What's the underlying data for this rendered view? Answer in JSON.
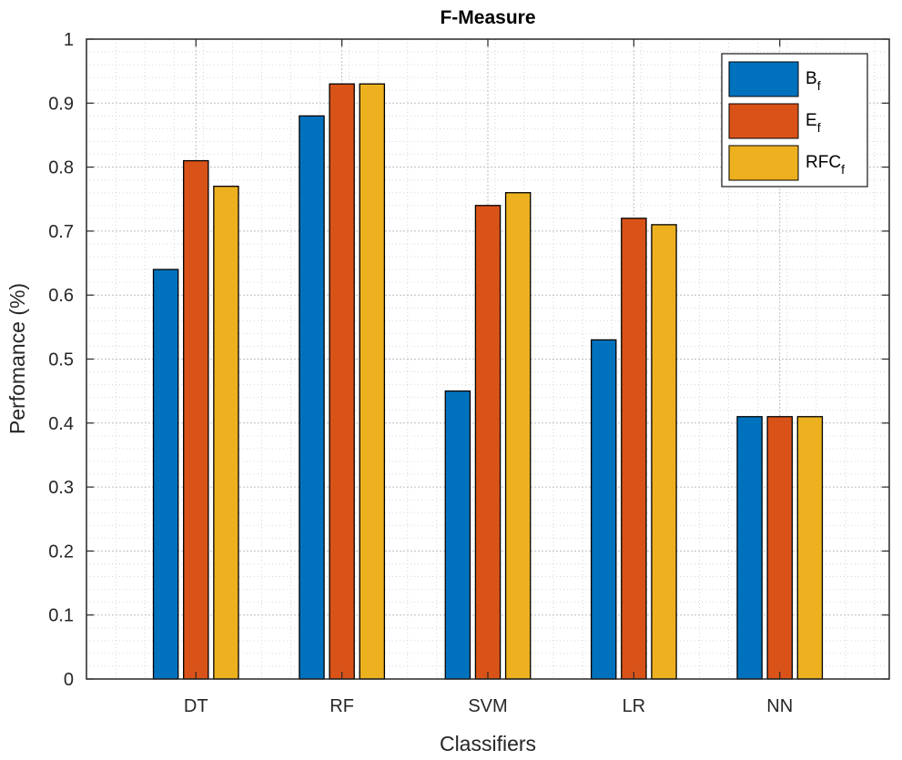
{
  "chart_data": {
    "type": "bar",
    "title": "F-Measure",
    "xlabel": "Classifiers",
    "ylabel": "Perfomance (%)",
    "categories": [
      "DT",
      "RF",
      "SVM",
      "LR",
      "NN"
    ],
    "ylim": [
      0,
      1
    ],
    "yticks": [
      "0",
      "0.1",
      "0.2",
      "0.3",
      "0.4",
      "0.5",
      "0.6",
      "0.7",
      "0.8",
      "0.9",
      "1"
    ],
    "grid": true,
    "legend_position": "top-right",
    "series": [
      {
        "name": "B",
        "subscript": "f",
        "color": "#0072BD",
        "values": [
          0.64,
          0.88,
          0.45,
          0.53,
          0.41
        ]
      },
      {
        "name": "E",
        "subscript": "f",
        "color": "#D95319",
        "values": [
          0.81,
          0.93,
          0.74,
          0.72,
          0.41
        ]
      },
      {
        "name": "RFC",
        "subscript": "f",
        "color": "#EDB120",
        "values": [
          0.77,
          0.93,
          0.76,
          0.71,
          0.41
        ]
      }
    ]
  }
}
